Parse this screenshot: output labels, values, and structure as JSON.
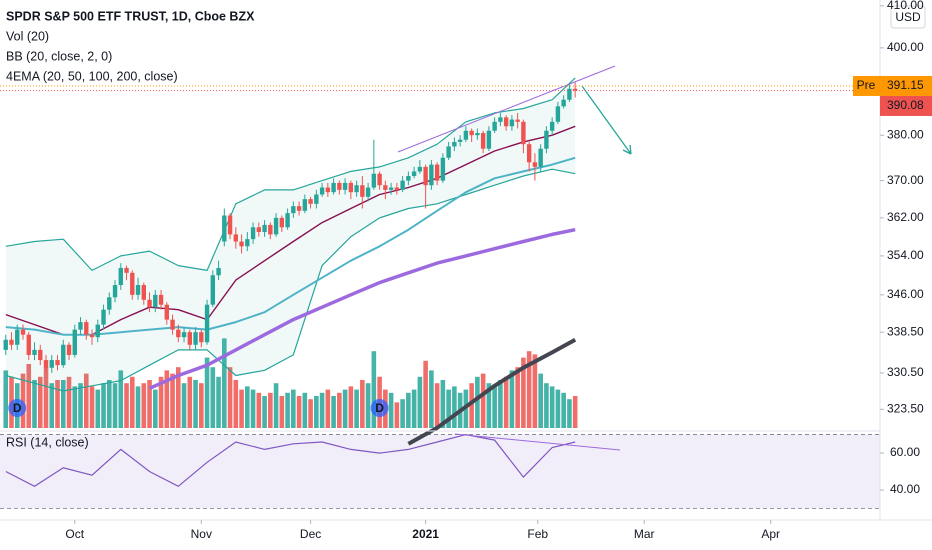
{
  "chart_data": {
    "type": "candlestick",
    "title": "SPDR S&P 500 ETF TRUST, 1D, Cboe BZX",
    "legend_lines": [
      "Vol (20)",
      "BB (20, close, 2, 0)",
      "4EMA (20, 50, 100, 200, close)"
    ],
    "currency": "USD",
    "up_color": "#26a69a",
    "down_color": "#ef5350",
    "log_scale": true,
    "xlim": [
      -1,
      152
    ],
    "ylim": [
      319.6,
      411.4
    ],
    "yticks": [
      {
        "value": 323.5,
        "label": "323.50"
      },
      {
        "value": 330.5,
        "label": "330.50"
      },
      {
        "value": 338.5,
        "label": "338.50"
      },
      {
        "value": 346,
        "label": "346.00"
      },
      {
        "value": 354,
        "label": "354.00"
      },
      {
        "value": 362,
        "label": "362.00"
      },
      {
        "value": 370,
        "label": "370.00"
      },
      {
        "value": 380,
        "label": "380.00"
      },
      {
        "value": 400,
        "label": "400.00"
      },
      {
        "value": 410,
        "label": "410.00"
      }
    ],
    "xticks": [
      {
        "value": 12,
        "label": "Oct"
      },
      {
        "value": 34,
        "label": "Nov"
      },
      {
        "value": 53,
        "label": "Dec"
      },
      {
        "value": 73,
        "label": "2021"
      },
      {
        "value": 92.5,
        "label": "Feb"
      },
      {
        "value": 111,
        "label": "Mar"
      },
      {
        "value": 133,
        "label": "Apr"
      }
    ],
    "open": [
      335,
      337,
      336,
      339,
      338,
      334,
      335,
      333,
      331.5,
      333,
      332,
      336,
      334,
      339,
      340.5,
      338,
      337.5,
      340,
      343,
      345.5,
      348,
      351.5,
      350.5,
      346,
      348,
      345,
      343.5,
      346,
      344,
      341,
      339,
      337.5,
      338.5,
      336,
      338.5,
      336.5,
      344,
      350,
      357,
      362.5,
      358.5,
      357,
      356,
      357.5,
      360,
      359,
      360.5,
      358.5,
      362,
      360,
      363,
      364.5,
      363.5,
      366,
      365,
      367,
      368.5,
      367.5,
      369.5,
      368,
      369.5,
      367.5,
      369,
      366.5,
      368.5,
      371.5,
      369,
      368,
      368.5,
      368,
      370,
      371,
      372,
      373,
      369,
      373.5,
      370,
      375,
      377.5,
      378.5,
      379,
      381,
      380,
      380.5,
      377,
      381,
      383,
      384,
      382,
      383.5,
      383,
      378,
      374,
      373,
      377,
      381,
      383,
      386.5,
      388,
      390.5
    ],
    "high": [
      338,
      338.5,
      340,
      340,
      338.5,
      336.5,
      336,
      334,
      334,
      334,
      337,
      336.5,
      340,
      341.5,
      341,
      339,
      341,
      344,
      346.5,
      349,
      352.5,
      352,
      351,
      349.5,
      348.5,
      346.5,
      347,
      347,
      344.5,
      342,
      340,
      339.5,
      339,
      339.5,
      339,
      345,
      351,
      353,
      364,
      363,
      360,
      358.5,
      359,
      361,
      361,
      361.5,
      361,
      363,
      362.5,
      364,
      365.5,
      365.5,
      367,
      366.5,
      368,
      369.5,
      369.5,
      370.5,
      370,
      370.5,
      370,
      370,
      371,
      369.5,
      379,
      372,
      370,
      369.5,
      369.5,
      371,
      372,
      373,
      374.5,
      373.5,
      374.5,
      374,
      376,
      378.5,
      379.5,
      380,
      382,
      381.5,
      381.5,
      381,
      382,
      384,
      385,
      384.5,
      384.5,
      385,
      383.5,
      378.5,
      376,
      378,
      382,
      384,
      387.5,
      389,
      391.5,
      392
    ],
    "low": [
      334,
      335,
      335,
      337,
      333,
      333,
      332,
      330.5,
      330.5,
      331,
      331.5,
      333,
      333.5,
      338,
      337,
      336,
      336.5,
      339,
      342,
      344.5,
      347,
      349,
      345,
      345,
      344,
      342.5,
      342.5,
      343,
      340,
      338,
      336.5,
      336.5,
      335,
      335,
      335.5,
      336,
      343.5,
      349,
      356,
      357.5,
      355.5,
      354.5,
      355,
      356.5,
      358,
      358,
      357.5,
      358,
      359,
      359.5,
      362,
      362.5,
      363,
      364,
      364,
      366.5,
      366.5,
      367,
      367,
      367,
      366,
      366.5,
      364,
      365.5,
      368,
      368,
      366,
      367,
      367,
      367.5,
      369,
      370.5,
      371.5,
      364,
      368,
      369,
      369.5,
      374.5,
      376.5,
      377.5,
      378.5,
      378.5,
      379,
      376,
      376.5,
      380.5,
      382,
      381,
      381,
      381.5,
      376,
      372,
      370,
      372,
      376,
      380,
      382.5,
      386,
      387.5,
      388.5
    ],
    "close": [
      337,
      336,
      339,
      338,
      334,
      335,
      333,
      331.5,
      333,
      332,
      336,
      334,
      339,
      340.5,
      338,
      337.5,
      340,
      343,
      345.5,
      348,
      351.5,
      350.5,
      346,
      348,
      345,
      343.5,
      346,
      344,
      341,
      339,
      337.5,
      338.5,
      336,
      338.5,
      336.5,
      344,
      350,
      351.5,
      362.5,
      358.5,
      357,
      356,
      357.5,
      360,
      359,
      360.5,
      358.5,
      362,
      360,
      363,
      364.5,
      363.5,
      366,
      365,
      367,
      368.5,
      367.5,
      369.5,
      368,
      369.5,
      367.5,
      369,
      366.5,
      368.5,
      371.5,
      369,
      368,
      368.5,
      368,
      370,
      371,
      372,
      373,
      369,
      373.5,
      370,
      375,
      377.5,
      378.5,
      379,
      381,
      380,
      380.5,
      377,
      381,
      383,
      384,
      382,
      383.5,
      383,
      378,
      374,
      373,
      377,
      381,
      383,
      386.5,
      388,
      390.5,
      390.1
    ],
    "volume": [
      90,
      80,
      70,
      85,
      100,
      75,
      80,
      95,
      70,
      75,
      75,
      80,
      65,
      70,
      85,
      65,
      60,
      70,
      75,
      70,
      90,
      70,
      80,
      65,
      70,
      75,
      60,
      80,
      90,
      85,
      95,
      70,
      80,
      75,
      70,
      110,
      95,
      80,
      140,
      95,
      75,
      60,
      65,
      60,
      55,
      50,
      55,
      70,
      50,
      55,
      60,
      50,
      55,
      45,
      50,
      55,
      60,
      50,
      55,
      60,
      65,
      60,
      75,
      70,
      120,
      80,
      60,
      55,
      40,
      45,
      55,
      60,
      80,
      105,
      90,
      70,
      75,
      60,
      65,
      55,
      60,
      70,
      80,
      85,
      70,
      65,
      75,
      80,
      90,
      95,
      110,
      120,
      115,
      85,
      70,
      65,
      60,
      55,
      45,
      50
    ],
    "volume_ylim": [
      0,
      250
    ],
    "indicator_x": [
      0,
      5,
      10,
      15,
      20,
      25,
      30,
      35,
      40,
      45,
      50,
      55,
      60,
      65,
      70,
      75,
      80,
      85,
      90,
      95,
      99
    ],
    "indicators": [
      {
        "color": "#26a69a",
        "width": 1.2,
        "values": [
          356,
          357,
          357.5,
          351,
          354,
          355,
          352,
          351,
          365,
          368,
          368,
          370,
          372,
          373,
          375,
          378,
          383,
          385,
          386,
          388,
          393
        ]
      },
      {
        "color": "#26a69a",
        "width": 1.2,
        "values": [
          330,
          328.5,
          327,
          328,
          329,
          332,
          335,
          335,
          330,
          331,
          334,
          352,
          358,
          362,
          364,
          365,
          367,
          369,
          371,
          372.5,
          371.5
        ]
      },
      {
        "color": "#880e4f",
        "width": 1.4,
        "values": [
          342,
          340,
          338,
          338,
          341,
          343.5,
          343,
          341,
          349,
          353,
          357,
          361,
          364,
          367,
          368.5,
          370.5,
          373.5,
          376.5,
          378.5,
          380,
          382
        ]
      },
      {
        "color": "#4fb3c8",
        "width": 2,
        "values": [
          339.5,
          339,
          338,
          338,
          338.5,
          339,
          339.5,
          339,
          340.5,
          342.5,
          346,
          349.5,
          353,
          356,
          359.5,
          363.5,
          367.5,
          370.5,
          372,
          373.5,
          375
        ]
      },
      {
        "color": "#9c6ade",
        "width": 3.5,
        "values": [
          null,
          null,
          null,
          null,
          null,
          327.5,
          330,
          332,
          335,
          338,
          341,
          343.5,
          346,
          348.5,
          350.5,
          352.5,
          354,
          355.5,
          357,
          358.5,
          359.5
        ]
      },
      {
        "color": "#434651",
        "width": 4,
        "values": [
          null,
          null,
          null,
          null,
          null,
          null,
          null,
          null,
          null,
          null,
          null,
          null,
          null,
          null,
          317,
          320,
          324,
          328,
          331.5,
          334.5,
          337
        ]
      }
    ],
    "markers": [
      {
        "x": 2,
        "label": "D"
      },
      {
        "x": 65,
        "label": "D"
      }
    ],
    "pre_label": "Pre",
    "pre_price": 391.15,
    "pre_price_label": "391.15",
    "last_price": 390.08,
    "last_price_label": "390.08",
    "rsi": {
      "title": "RSI (14, close)",
      "color": "#7e57c2",
      "ylim": [
        28.1,
        71.4
      ],
      "yticks": [
        {
          "value": 60,
          "label": "60.00"
        },
        {
          "value": 40,
          "label": "40.00"
        }
      ],
      "band": [
        30,
        70
      ],
      "values": [
        50,
        42,
        52,
        48,
        62,
        50,
        42,
        55,
        66,
        62,
        65,
        66,
        62,
        60,
        62,
        66,
        70,
        67,
        47,
        63,
        66
      ]
    }
  }
}
